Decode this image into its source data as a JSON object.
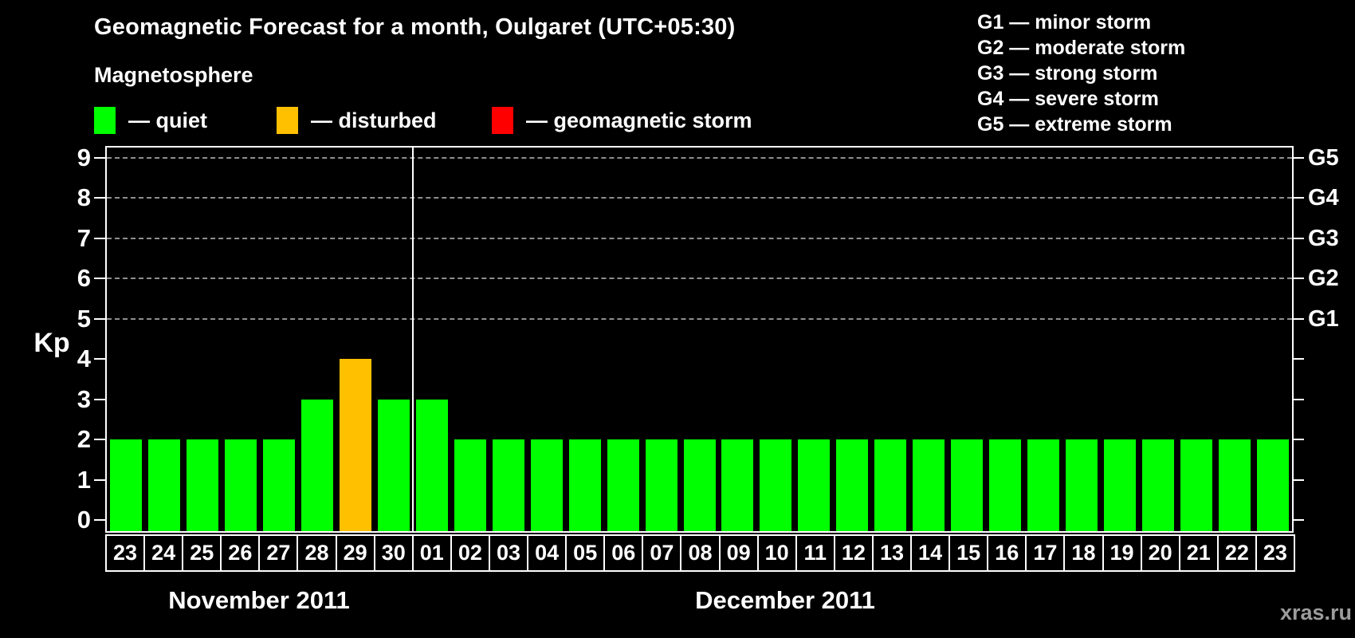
{
  "title": "Geomagnetic Forecast for a month, Oulgaret (UTC+05:30)",
  "magnetosphere_legend": {
    "heading": "Magnetosphere",
    "items": [
      {
        "key": "quiet",
        "label": "— quiet"
      },
      {
        "key": "disturbed",
        "label": "— disturbed"
      },
      {
        "key": "storm",
        "label": "— geomagnetic storm"
      }
    ]
  },
  "g_legend": {
    "lines": [
      "G1 — minor storm",
      "G2 — moderate storm",
      "G3 — strong storm",
      "G4 — severe storm",
      "G5 — extreme storm"
    ]
  },
  "colors": {
    "quiet": "#00FF00",
    "disturbed": "#FFC000",
    "storm": "#FF0000",
    "grid": "#8f8f8f",
    "axis": "#FFFFFF",
    "watermark": "#9C9C9C"
  },
  "axes": {
    "kp_label": "Kp",
    "kp_ticks": [
      0,
      1,
      2,
      3,
      4,
      5,
      6,
      7,
      8,
      9
    ],
    "gridlines_kp": [
      5,
      6,
      7,
      8,
      9
    ],
    "g_labels": [
      {
        "kp": 5,
        "text": "G1"
      },
      {
        "kp": 6,
        "text": "G2"
      },
      {
        "kp": 7,
        "text": "G3"
      },
      {
        "kp": 8,
        "text": "G4"
      },
      {
        "kp": 9,
        "text": "G5"
      }
    ]
  },
  "watermark": "xras.ru",
  "chart_data": {
    "type": "bar",
    "title": "Geomagnetic Forecast for a month, Oulgaret (UTC+05:30)",
    "ylabel": "Kp",
    "ylim": [
      0,
      9.3
    ],
    "yticks": [
      0,
      1,
      2,
      3,
      4,
      5,
      6,
      7,
      8,
      9
    ],
    "right_axis_labels": [
      "G1",
      "G2",
      "G3",
      "G4",
      "G5"
    ],
    "gridlines_at_kp": [
      5,
      6,
      7,
      8,
      9
    ],
    "grid": "dashed horizontal lines at Kp 5-9 only",
    "legend_position": "top",
    "months": [
      {
        "label": "November 2011",
        "days": [
          "23",
          "24",
          "25",
          "26",
          "27",
          "28",
          "29",
          "30"
        ],
        "values": [
          2,
          2,
          2,
          2,
          2,
          3,
          4,
          3
        ],
        "status": [
          "quiet",
          "quiet",
          "quiet",
          "quiet",
          "quiet",
          "quiet",
          "disturbed",
          "quiet"
        ]
      },
      {
        "label": "December 2011",
        "days": [
          "01",
          "02",
          "03",
          "04",
          "05",
          "06",
          "07",
          "08",
          "09",
          "10",
          "11",
          "12",
          "13",
          "14",
          "15",
          "16",
          "17",
          "18",
          "19",
          "20",
          "21",
          "22",
          "23"
        ],
        "values": [
          3,
          2,
          2,
          2,
          2,
          2,
          2,
          2,
          2,
          2,
          2,
          2,
          2,
          2,
          2,
          2,
          2,
          2,
          2,
          2,
          2,
          2,
          2
        ],
        "status": [
          "quiet",
          "quiet",
          "quiet",
          "quiet",
          "quiet",
          "quiet",
          "quiet",
          "quiet",
          "quiet",
          "quiet",
          "quiet",
          "quiet",
          "quiet",
          "quiet",
          "quiet",
          "quiet",
          "quiet",
          "quiet",
          "quiet",
          "quiet",
          "quiet",
          "quiet",
          "quiet"
        ]
      }
    ]
  }
}
